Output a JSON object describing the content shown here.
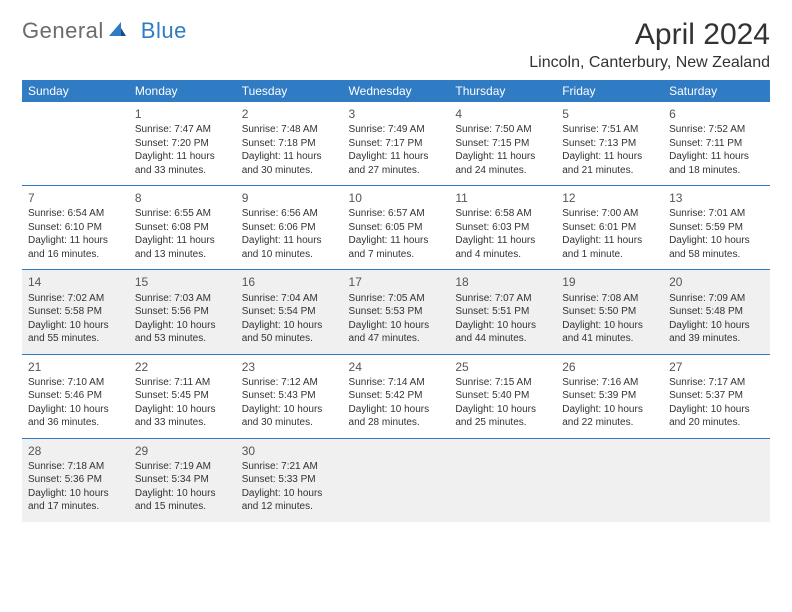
{
  "brand": {
    "part1": "General",
    "part2": "Blue"
  },
  "title": "April 2024",
  "location": "Lincoln, Canterbury, New Zealand",
  "colors": {
    "header_bg": "#2f7bc4",
    "header_text": "#ffffff",
    "border": "#2f7bc4",
    "shaded": "#f0f0f0",
    "text": "#333333",
    "logo_grey": "#6b6b6b",
    "logo_blue": "#2f7bc4",
    "page_bg": "#ffffff"
  },
  "typography": {
    "title_fontsize": 30,
    "location_fontsize": 16,
    "day_header_fontsize": 12,
    "cell_fontsize": 10,
    "daynum_fontsize": 12
  },
  "day_headers": [
    "Sunday",
    "Monday",
    "Tuesday",
    "Wednesday",
    "Thursday",
    "Friday",
    "Saturday"
  ],
  "weeks": [
    [
      {
        "empty": true
      },
      {
        "n": "1",
        "sr": "Sunrise: 7:47 AM",
        "ss": "Sunset: 7:20 PM",
        "d1": "Daylight: 11 hours",
        "d2": "and 33 minutes."
      },
      {
        "n": "2",
        "sr": "Sunrise: 7:48 AM",
        "ss": "Sunset: 7:18 PM",
        "d1": "Daylight: 11 hours",
        "d2": "and 30 minutes."
      },
      {
        "n": "3",
        "sr": "Sunrise: 7:49 AM",
        "ss": "Sunset: 7:17 PM",
        "d1": "Daylight: 11 hours",
        "d2": "and 27 minutes."
      },
      {
        "n": "4",
        "sr": "Sunrise: 7:50 AM",
        "ss": "Sunset: 7:15 PM",
        "d1": "Daylight: 11 hours",
        "d2": "and 24 minutes."
      },
      {
        "n": "5",
        "sr": "Sunrise: 7:51 AM",
        "ss": "Sunset: 7:13 PM",
        "d1": "Daylight: 11 hours",
        "d2": "and 21 minutes."
      },
      {
        "n": "6",
        "sr": "Sunrise: 7:52 AM",
        "ss": "Sunset: 7:11 PM",
        "d1": "Daylight: 11 hours",
        "d2": "and 18 minutes."
      }
    ],
    [
      {
        "n": "7",
        "sr": "Sunrise: 6:54 AM",
        "ss": "Sunset: 6:10 PM",
        "d1": "Daylight: 11 hours",
        "d2": "and 16 minutes."
      },
      {
        "n": "8",
        "sr": "Sunrise: 6:55 AM",
        "ss": "Sunset: 6:08 PM",
        "d1": "Daylight: 11 hours",
        "d2": "and 13 minutes."
      },
      {
        "n": "9",
        "sr": "Sunrise: 6:56 AM",
        "ss": "Sunset: 6:06 PM",
        "d1": "Daylight: 11 hours",
        "d2": "and 10 minutes."
      },
      {
        "n": "10",
        "sr": "Sunrise: 6:57 AM",
        "ss": "Sunset: 6:05 PM",
        "d1": "Daylight: 11 hours",
        "d2": "and 7 minutes."
      },
      {
        "n": "11",
        "sr": "Sunrise: 6:58 AM",
        "ss": "Sunset: 6:03 PM",
        "d1": "Daylight: 11 hours",
        "d2": "and 4 minutes."
      },
      {
        "n": "12",
        "sr": "Sunrise: 7:00 AM",
        "ss": "Sunset: 6:01 PM",
        "d1": "Daylight: 11 hours",
        "d2": "and 1 minute."
      },
      {
        "n": "13",
        "sr": "Sunrise: 7:01 AM",
        "ss": "Sunset: 5:59 PM",
        "d1": "Daylight: 10 hours",
        "d2": "and 58 minutes."
      }
    ],
    [
      {
        "n": "14",
        "sr": "Sunrise: 7:02 AM",
        "ss": "Sunset: 5:58 PM",
        "d1": "Daylight: 10 hours",
        "d2": "and 55 minutes."
      },
      {
        "n": "15",
        "sr": "Sunrise: 7:03 AM",
        "ss": "Sunset: 5:56 PM",
        "d1": "Daylight: 10 hours",
        "d2": "and 53 minutes."
      },
      {
        "n": "16",
        "sr": "Sunrise: 7:04 AM",
        "ss": "Sunset: 5:54 PM",
        "d1": "Daylight: 10 hours",
        "d2": "and 50 minutes."
      },
      {
        "n": "17",
        "sr": "Sunrise: 7:05 AM",
        "ss": "Sunset: 5:53 PM",
        "d1": "Daylight: 10 hours",
        "d2": "and 47 minutes."
      },
      {
        "n": "18",
        "sr": "Sunrise: 7:07 AM",
        "ss": "Sunset: 5:51 PM",
        "d1": "Daylight: 10 hours",
        "d2": "and 44 minutes."
      },
      {
        "n": "19",
        "sr": "Sunrise: 7:08 AM",
        "ss": "Sunset: 5:50 PM",
        "d1": "Daylight: 10 hours",
        "d2": "and 41 minutes."
      },
      {
        "n": "20",
        "sr": "Sunrise: 7:09 AM",
        "ss": "Sunset: 5:48 PM",
        "d1": "Daylight: 10 hours",
        "d2": "and 39 minutes."
      }
    ],
    [
      {
        "n": "21",
        "sr": "Sunrise: 7:10 AM",
        "ss": "Sunset: 5:46 PM",
        "d1": "Daylight: 10 hours",
        "d2": "and 36 minutes."
      },
      {
        "n": "22",
        "sr": "Sunrise: 7:11 AM",
        "ss": "Sunset: 5:45 PM",
        "d1": "Daylight: 10 hours",
        "d2": "and 33 minutes."
      },
      {
        "n": "23",
        "sr": "Sunrise: 7:12 AM",
        "ss": "Sunset: 5:43 PM",
        "d1": "Daylight: 10 hours",
        "d2": "and 30 minutes."
      },
      {
        "n": "24",
        "sr": "Sunrise: 7:14 AM",
        "ss": "Sunset: 5:42 PM",
        "d1": "Daylight: 10 hours",
        "d2": "and 28 minutes."
      },
      {
        "n": "25",
        "sr": "Sunrise: 7:15 AM",
        "ss": "Sunset: 5:40 PM",
        "d1": "Daylight: 10 hours",
        "d2": "and 25 minutes."
      },
      {
        "n": "26",
        "sr": "Sunrise: 7:16 AM",
        "ss": "Sunset: 5:39 PM",
        "d1": "Daylight: 10 hours",
        "d2": "and 22 minutes."
      },
      {
        "n": "27",
        "sr": "Sunrise: 7:17 AM",
        "ss": "Sunset: 5:37 PM",
        "d1": "Daylight: 10 hours",
        "d2": "and 20 minutes."
      }
    ],
    [
      {
        "n": "28",
        "sr": "Sunrise: 7:18 AM",
        "ss": "Sunset: 5:36 PM",
        "d1": "Daylight: 10 hours",
        "d2": "and 17 minutes."
      },
      {
        "n": "29",
        "sr": "Sunrise: 7:19 AM",
        "ss": "Sunset: 5:34 PM",
        "d1": "Daylight: 10 hours",
        "d2": "and 15 minutes."
      },
      {
        "n": "30",
        "sr": "Sunrise: 7:21 AM",
        "ss": "Sunset: 5:33 PM",
        "d1": "Daylight: 10 hours",
        "d2": "and 12 minutes."
      },
      {
        "empty": true
      },
      {
        "empty": true
      },
      {
        "empty": true
      },
      {
        "empty": true
      }
    ]
  ],
  "shaded_weeks": [
    2,
    4
  ]
}
